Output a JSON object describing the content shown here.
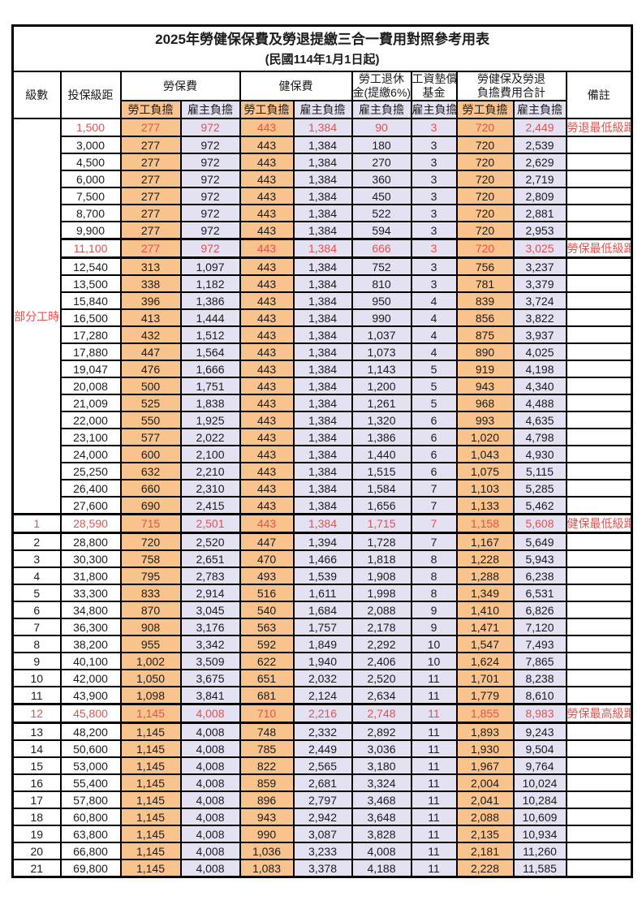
{
  "title": "2025年勞健保保費及勞退提繳三合一費用對照參考用表",
  "subtitle": "(民國114年1月1日起)",
  "colors": {
    "employee_burden_bg": "#F9C38D",
    "employer_burden_bg": "#E3E1F2",
    "highlight_text": "#E9504D",
    "border": "#000000"
  },
  "header": {
    "level": "級數",
    "bracket": "投保級距",
    "labor_insurance": "勞保費",
    "health_insurance": "健保費",
    "pension_line1": "勞工退休",
    "pension_line2": "金(提繳6%)",
    "wage_fund_line1": "工資墊償",
    "wage_fund_line2": "基金",
    "total_line1": "勞健保及勞退",
    "total_line2": "負擔費用合計",
    "employee_burden": "勞工負擔",
    "employer_burden": "雇主負擔",
    "remark": "備註"
  },
  "table": {
    "part_time_label": "部分工時",
    "part_time_rowspan": 23,
    "columns_order": [
      "labor_emp",
      "labor_er",
      "health_emp",
      "health_er",
      "pension_er",
      "wage_fund_er",
      "total_emp",
      "total_er"
    ],
    "rows": [
      {
        "level": "",
        "bracket": "1,500",
        "values": [
          "277",
          "972",
          "443",
          "1,384",
          "90",
          "3",
          "720",
          "2,449"
        ],
        "note": "勞退最低級距",
        "hl": true,
        "thick": false
      },
      {
        "level": "",
        "bracket": "3,000",
        "values": [
          "277",
          "972",
          "443",
          "1,384",
          "180",
          "3",
          "720",
          "2,539"
        ],
        "note": "",
        "hl": false,
        "thick": false
      },
      {
        "level": "",
        "bracket": "4,500",
        "values": [
          "277",
          "972",
          "443",
          "1,384",
          "270",
          "3",
          "720",
          "2,629"
        ],
        "note": "",
        "hl": false,
        "thick": false
      },
      {
        "level": "",
        "bracket": "6,000",
        "values": [
          "277",
          "972",
          "443",
          "1,384",
          "360",
          "3",
          "720",
          "2,719"
        ],
        "note": "",
        "hl": false,
        "thick": false
      },
      {
        "level": "",
        "bracket": "7,500",
        "values": [
          "277",
          "972",
          "443",
          "1,384",
          "450",
          "3",
          "720",
          "2,809"
        ],
        "note": "",
        "hl": false,
        "thick": false
      },
      {
        "level": "",
        "bracket": "8,700",
        "values": [
          "277",
          "972",
          "443",
          "1,384",
          "522",
          "3",
          "720",
          "2,881"
        ],
        "note": "",
        "hl": false,
        "thick": false
      },
      {
        "level": "",
        "bracket": "9,900",
        "values": [
          "277",
          "972",
          "443",
          "1,384",
          "594",
          "3",
          "720",
          "2,953"
        ],
        "note": "",
        "hl": false,
        "thick": false
      },
      {
        "level": "",
        "bracket": "11,100",
        "values": [
          "277",
          "972",
          "443",
          "1,384",
          "666",
          "3",
          "720",
          "3,025"
        ],
        "note": "勞保最低級距",
        "hl": true,
        "thick": true
      },
      {
        "level": "",
        "bracket": "12,540",
        "values": [
          "313",
          "1,097",
          "443",
          "1,384",
          "752",
          "3",
          "756",
          "3,237"
        ],
        "note": "",
        "hl": false,
        "thick": false
      },
      {
        "level": "",
        "bracket": "13,500",
        "values": [
          "338",
          "1,182",
          "443",
          "1,384",
          "810",
          "3",
          "781",
          "3,379"
        ],
        "note": "",
        "hl": false,
        "thick": false
      },
      {
        "level": "",
        "bracket": "15,840",
        "values": [
          "396",
          "1,386",
          "443",
          "1,384",
          "950",
          "4",
          "839",
          "3,724"
        ],
        "note": "",
        "hl": false,
        "thick": false
      },
      {
        "level": "",
        "bracket": "16,500",
        "values": [
          "413",
          "1,444",
          "443",
          "1,384",
          "990",
          "4",
          "856",
          "3,822"
        ],
        "note": "",
        "hl": false,
        "thick": false
      },
      {
        "level": "",
        "bracket": "17,280",
        "values": [
          "432",
          "1,512",
          "443",
          "1,384",
          "1,037",
          "4",
          "875",
          "3,937"
        ],
        "note": "",
        "hl": false,
        "thick": false
      },
      {
        "level": "",
        "bracket": "17,880",
        "values": [
          "447",
          "1,564",
          "443",
          "1,384",
          "1,073",
          "4",
          "890",
          "4,025"
        ],
        "note": "",
        "hl": false,
        "thick": false
      },
      {
        "level": "",
        "bracket": "19,047",
        "values": [
          "476",
          "1,666",
          "443",
          "1,384",
          "1,143",
          "5",
          "919",
          "4,198"
        ],
        "note": "",
        "hl": false,
        "thick": false
      },
      {
        "level": "",
        "bracket": "20,008",
        "values": [
          "500",
          "1,751",
          "443",
          "1,384",
          "1,200",
          "5",
          "943",
          "4,340"
        ],
        "note": "",
        "hl": false,
        "thick": false
      },
      {
        "level": "",
        "bracket": "21,009",
        "values": [
          "525",
          "1,838",
          "443",
          "1,384",
          "1,261",
          "5",
          "968",
          "4,488"
        ],
        "note": "",
        "hl": false,
        "thick": false
      },
      {
        "level": "",
        "bracket": "22,000",
        "values": [
          "550",
          "1,925",
          "443",
          "1,384",
          "1,320",
          "6",
          "993",
          "4,635"
        ],
        "note": "",
        "hl": false,
        "thick": false
      },
      {
        "level": "",
        "bracket": "23,100",
        "values": [
          "577",
          "2,022",
          "443",
          "1,384",
          "1,386",
          "6",
          "1,020",
          "4,798"
        ],
        "note": "",
        "hl": false,
        "thick": false
      },
      {
        "level": "",
        "bracket": "24,000",
        "values": [
          "600",
          "2,100",
          "443",
          "1,384",
          "1,440",
          "6",
          "1,043",
          "4,930"
        ],
        "note": "",
        "hl": false,
        "thick": false
      },
      {
        "level": "",
        "bracket": "25,250",
        "values": [
          "632",
          "2,210",
          "443",
          "1,384",
          "1,515",
          "6",
          "1,075",
          "5,115"
        ],
        "note": "",
        "hl": false,
        "thick": false
      },
      {
        "level": "",
        "bracket": "26,400",
        "values": [
          "660",
          "2,310",
          "443",
          "1,384",
          "1,584",
          "7",
          "1,103",
          "5,285"
        ],
        "note": "",
        "hl": false,
        "thick": false
      },
      {
        "level": "",
        "bracket": "27,600",
        "values": [
          "690",
          "2,415",
          "443",
          "1,384",
          "1,656",
          "7",
          "1,133",
          "5,462"
        ],
        "note": "",
        "hl": false,
        "thick": false
      },
      {
        "level": "1",
        "bracket": "28,590",
        "values": [
          "715",
          "2,501",
          "443",
          "1,384",
          "1,715",
          "7",
          "1,158",
          "5,608"
        ],
        "note": "健保最低級距",
        "hl": true,
        "thick": true
      },
      {
        "level": "2",
        "bracket": "28,800",
        "values": [
          "720",
          "2,520",
          "447",
          "1,394",
          "1,728",
          "7",
          "1,167",
          "5,649"
        ],
        "note": "",
        "hl": false,
        "thick": false
      },
      {
        "level": "3",
        "bracket": "30,300",
        "values": [
          "758",
          "2,651",
          "470",
          "1,466",
          "1,818",
          "8",
          "1,228",
          "5,943"
        ],
        "note": "",
        "hl": false,
        "thick": false
      },
      {
        "level": "4",
        "bracket": "31,800",
        "values": [
          "795",
          "2,783",
          "493",
          "1,539",
          "1,908",
          "8",
          "1,288",
          "6,238"
        ],
        "note": "",
        "hl": false,
        "thick": false
      },
      {
        "level": "5",
        "bracket": "33,300",
        "values": [
          "833",
          "2,914",
          "516",
          "1,611",
          "1,998",
          "8",
          "1,349",
          "6,531"
        ],
        "note": "",
        "hl": false,
        "thick": false
      },
      {
        "level": "6",
        "bracket": "34,800",
        "values": [
          "870",
          "3,045",
          "540",
          "1,684",
          "2,088",
          "9",
          "1,410",
          "6,826"
        ],
        "note": "",
        "hl": false,
        "thick": false
      },
      {
        "level": "7",
        "bracket": "36,300",
        "values": [
          "908",
          "3,176",
          "563",
          "1,757",
          "2,178",
          "9",
          "1,471",
          "7,120"
        ],
        "note": "",
        "hl": false,
        "thick": false
      },
      {
        "level": "8",
        "bracket": "38,200",
        "values": [
          "955",
          "3,342",
          "592",
          "1,849",
          "2,292",
          "10",
          "1,547",
          "7,493"
        ],
        "note": "",
        "hl": false,
        "thick": false
      },
      {
        "level": "9",
        "bracket": "40,100",
        "values": [
          "1,002",
          "3,509",
          "622",
          "1,940",
          "2,406",
          "10",
          "1,624",
          "7,865"
        ],
        "note": "",
        "hl": false,
        "thick": false
      },
      {
        "level": "10",
        "bracket": "42,000",
        "values": [
          "1,050",
          "3,675",
          "651",
          "2,032",
          "2,520",
          "11",
          "1,701",
          "8,238"
        ],
        "note": "",
        "hl": false,
        "thick": false
      },
      {
        "level": "11",
        "bracket": "43,900",
        "values": [
          "1,098",
          "3,841",
          "681",
          "2,124",
          "2,634",
          "11",
          "1,779",
          "8,610"
        ],
        "note": "",
        "hl": false,
        "thick": false
      },
      {
        "level": "12",
        "bracket": "45,800",
        "values": [
          "1,145",
          "4,008",
          "710",
          "2,216",
          "2,748",
          "11",
          "1,855",
          "8,983"
        ],
        "note": "勞保最高級距",
        "hl": true,
        "thick": true
      },
      {
        "level": "13",
        "bracket": "48,200",
        "values": [
          "1,145",
          "4,008",
          "748",
          "2,332",
          "2,892",
          "11",
          "1,893",
          "9,243"
        ],
        "note": "",
        "hl": false,
        "thick": false
      },
      {
        "level": "14",
        "bracket": "50,600",
        "values": [
          "1,145",
          "4,008",
          "785",
          "2,449",
          "3,036",
          "11",
          "1,930",
          "9,504"
        ],
        "note": "",
        "hl": false,
        "thick": false
      },
      {
        "level": "15",
        "bracket": "53,000",
        "values": [
          "1,145",
          "4,008",
          "822",
          "2,565",
          "3,180",
          "11",
          "1,967",
          "9,764"
        ],
        "note": "",
        "hl": false,
        "thick": false
      },
      {
        "level": "16",
        "bracket": "55,400",
        "values": [
          "1,145",
          "4,008",
          "859",
          "2,681",
          "3,324",
          "11",
          "2,004",
          "10,024"
        ],
        "note": "",
        "hl": false,
        "thick": false
      },
      {
        "level": "17",
        "bracket": "57,800",
        "values": [
          "1,145",
          "4,008",
          "896",
          "2,797",
          "3,468",
          "11",
          "2,041",
          "10,284"
        ],
        "note": "",
        "hl": false,
        "thick": false
      },
      {
        "level": "18",
        "bracket": "60,800",
        "values": [
          "1,145",
          "4,008",
          "943",
          "2,942",
          "3,648",
          "11",
          "2,088",
          "10,609"
        ],
        "note": "",
        "hl": false,
        "thick": false
      },
      {
        "level": "19",
        "bracket": "63,800",
        "values": [
          "1,145",
          "4,008",
          "990",
          "3,087",
          "3,828",
          "11",
          "2,135",
          "10,934"
        ],
        "note": "",
        "hl": false,
        "thick": false
      },
      {
        "level": "20",
        "bracket": "66,800",
        "values": [
          "1,145",
          "4,008",
          "1,036",
          "3,233",
          "4,008",
          "11",
          "2,181",
          "11,260"
        ],
        "note": "",
        "hl": false,
        "thick": false
      },
      {
        "level": "21",
        "bracket": "69,800",
        "values": [
          "1,145",
          "4,008",
          "1,083",
          "3,378",
          "4,188",
          "11",
          "2,228",
          "11,585"
        ],
        "note": "",
        "hl": false,
        "thick": false
      }
    ]
  }
}
